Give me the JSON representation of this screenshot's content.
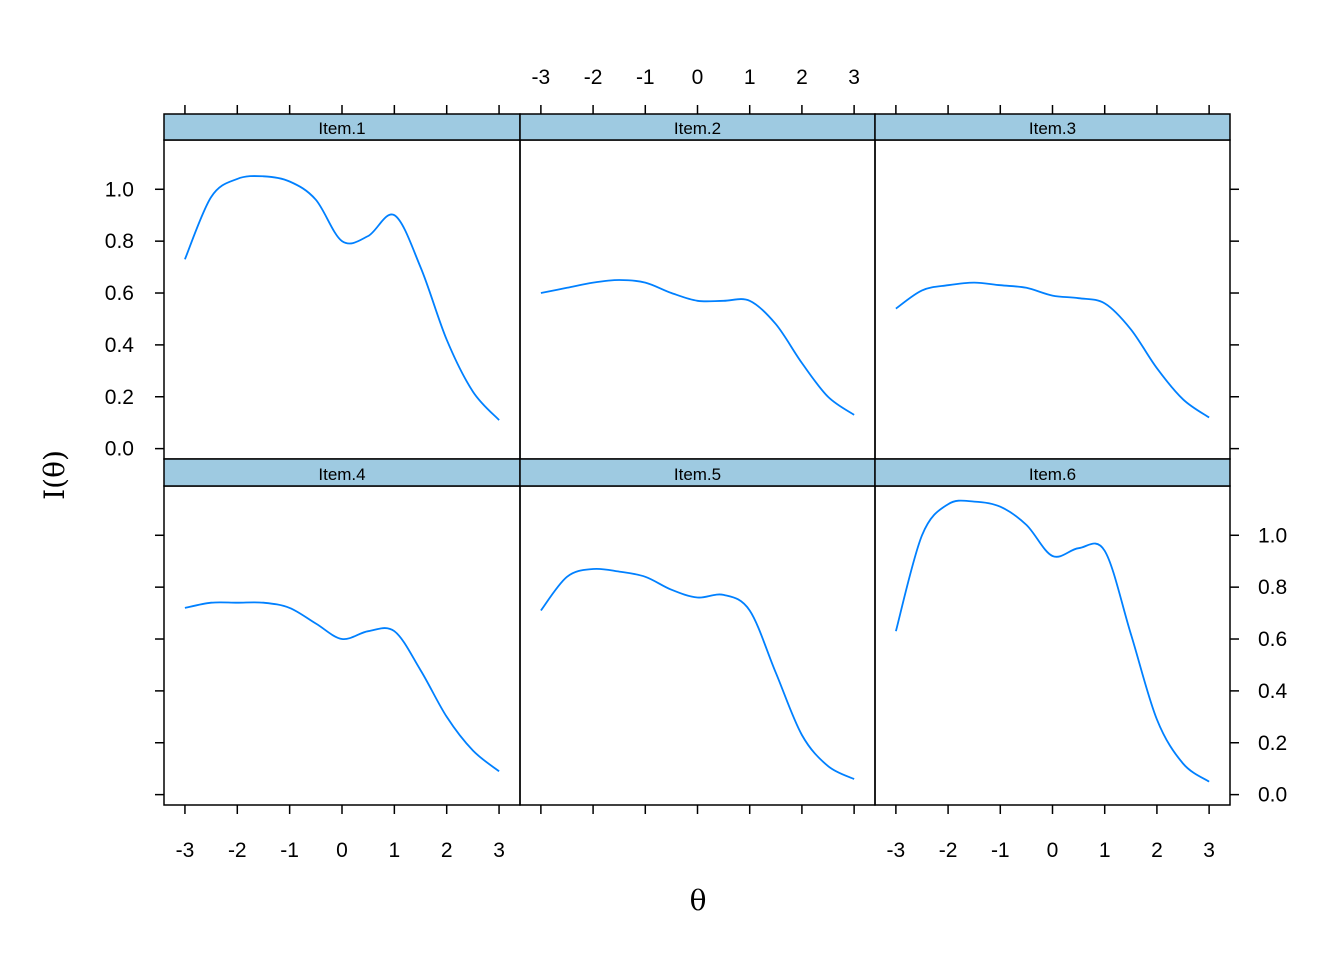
{
  "chart_data": {
    "type": "line",
    "layout": "2 rows x 3 columns lattice",
    "xlabel": "θ",
    "ylabel": "I(θ)",
    "xlim": [
      -3.4,
      3.4
    ],
    "ylim": [
      -0.04,
      1.19
    ],
    "x_ticks": [
      -3,
      -2,
      -1,
      0,
      1,
      2,
      3
    ],
    "x_tick_labels": [
      "-3",
      "-2",
      "-1",
      "0",
      "1",
      "2",
      "3"
    ],
    "y_ticks": [
      0,
      0.2,
      0.4,
      0.6,
      0.8,
      1.0
    ],
    "y_tick_labels": [
      "0.0",
      "0.2",
      "0.4",
      "0.6",
      "0.8",
      "1.0"
    ],
    "line_color": "#0080ff",
    "strip_color": "#9ecae1",
    "x": [
      -3,
      -2.5,
      -2,
      -1.5,
      -1,
      -0.5,
      0,
      0.5,
      1,
      1.5,
      2,
      2.5,
      3
    ],
    "panels": [
      {
        "label": "Item.1",
        "values": [
          0.73,
          0.97,
          1.04,
          1.05,
          1.03,
          0.96,
          0.8,
          0.82,
          0.9,
          0.7,
          0.42,
          0.22,
          0.11
        ]
      },
      {
        "label": "Item.2",
        "values": [
          0.6,
          0.62,
          0.64,
          0.65,
          0.64,
          0.6,
          0.57,
          0.57,
          0.57,
          0.48,
          0.33,
          0.2,
          0.13
        ]
      },
      {
        "label": "Item.3",
        "values": [
          0.54,
          0.61,
          0.63,
          0.64,
          0.63,
          0.62,
          0.59,
          0.58,
          0.56,
          0.46,
          0.31,
          0.19,
          0.12
        ]
      },
      {
        "label": "Item.4",
        "values": [
          0.72,
          0.74,
          0.74,
          0.74,
          0.72,
          0.66,
          0.6,
          0.63,
          0.63,
          0.48,
          0.3,
          0.17,
          0.09
        ]
      },
      {
        "label": "Item.5",
        "values": [
          0.71,
          0.84,
          0.87,
          0.86,
          0.84,
          0.79,
          0.76,
          0.77,
          0.71,
          0.47,
          0.23,
          0.11,
          0.06
        ]
      },
      {
        "label": "Item.6",
        "values": [
          0.63,
          1.0,
          1.12,
          1.13,
          1.11,
          1.04,
          0.92,
          0.95,
          0.94,
          0.62,
          0.29,
          0.12,
          0.05
        ]
      }
    ]
  }
}
